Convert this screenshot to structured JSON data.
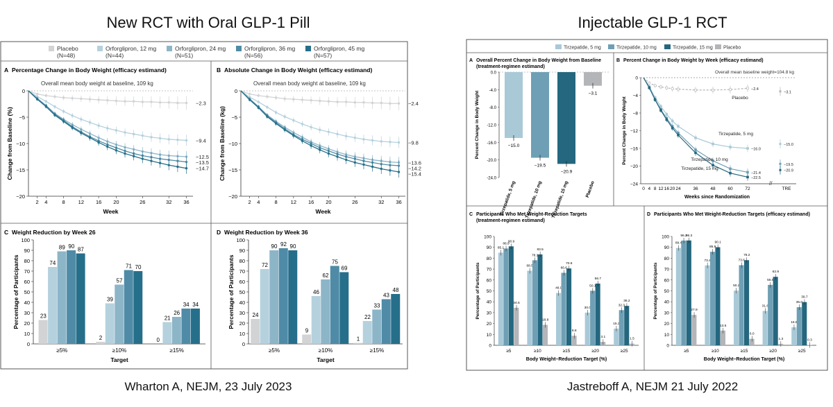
{
  "headings": {
    "left_title": "New RCT with Oral GLP-1 Pill",
    "right_title": "Injectable GLP-1 RCT",
    "left_citation": "Wharton A, NEJM, 23 July 2023",
    "right_citation": "Jastreboff A, NEJM 21 July 2022"
  },
  "colors": {
    "placebo": "#d2d3d5",
    "orf12": "#b5d1dd",
    "orf24": "#8db5c8",
    "orf36": "#4f8ba6",
    "orf45": "#266f8a",
    "tz5": "#a9c9d7",
    "tz10": "#6f9fb4",
    "tz15": "#24677f",
    "tzplacebo": "#b4b5b8"
  },
  "left_legend": [
    {
      "name": "Placebo",
      "n": "(N=48)",
      "key": "placebo"
    },
    {
      "name": "Orforglipron, 12 mg",
      "n": "(N=44)",
      "key": "orf12"
    },
    {
      "name": "Orforglipron, 24 mg",
      "n": "(N=51)",
      "key": "orf24"
    },
    {
      "name": "Orforglipron, 36 mg",
      "n": "(N=56)",
      "key": "orf36"
    },
    {
      "name": "Orforglipron, 45 mg",
      "n": "(N=57)",
      "key": "orf45"
    }
  ],
  "right_legend": [
    {
      "name": "Tirzepatide, 5 mg",
      "key": "tz5"
    },
    {
      "name": "Tirzepatide, 10 mg",
      "key": "tz10"
    },
    {
      "name": "Tirzepatide, 15 mg",
      "key": "tz15"
    },
    {
      "name": "Placebo",
      "key": "tzplacebo"
    }
  ],
  "chart_data": [
    {
      "id": "lineA",
      "type": "line",
      "panel_letter": "A",
      "title": "Percentage Change in Body Weight (efficacy estimand)",
      "note": "Overall mean body weight at baseline, 109 kg",
      "xlabel": "Week",
      "ylabel": "Change from Baseline (%)",
      "x_ticks": [
        2,
        4,
        8,
        12,
        16,
        20,
        26,
        32,
        36
      ],
      "y_ticks": [
        0,
        -5,
        -10,
        -15,
        -20
      ],
      "ylim": [
        -20,
        0
      ],
      "xlim": [
        0,
        37.5
      ],
      "x": [
        0,
        2,
        4,
        6,
        8,
        10,
        12,
        14,
        16,
        18,
        20,
        22,
        24,
        26,
        28,
        30,
        32,
        34,
        36
      ],
      "series": [
        {
          "key": "placebo",
          "end_label": "−2.3",
          "values": [
            0,
            -0.6,
            -0.9,
            -1.1,
            -1.3,
            -1.4,
            -1.5,
            -1.6,
            -1.7,
            -1.8,
            -1.9,
            -2.0,
            -2.0,
            -2.1,
            -2.1,
            -2.2,
            -2.2,
            -2.3,
            -2.3
          ]
        },
        {
          "key": "orf12",
          "end_label": "−9.4",
          "values": [
            0,
            -1.1,
            -2.0,
            -3.0,
            -3.9,
            -4.7,
            -5.4,
            -6.0,
            -6.6,
            -7.1,
            -7.5,
            -7.9,
            -8.2,
            -8.5,
            -8.8,
            -9.0,
            -9.2,
            -9.3,
            -9.4
          ]
        },
        {
          "key": "orf24",
          "end_label": "−12.5",
          "values": [
            0,
            -1.4,
            -2.8,
            -4.3,
            -5.4,
            -6.4,
            -7.3,
            -8.1,
            -8.9,
            -9.6,
            -10.2,
            -10.7,
            -11.1,
            -11.5,
            -11.8,
            -12.1,
            -12.3,
            -12.4,
            -12.5
          ]
        },
        {
          "key": "orf36",
          "end_label": "−13.5",
          "values": [
            0,
            -1.5,
            -2.8,
            -4.4,
            -5.6,
            -6.8,
            -7.8,
            -8.7,
            -9.5,
            -10.2,
            -10.8,
            -11.4,
            -11.9,
            -12.3,
            -12.6,
            -12.9,
            -13.1,
            -13.3,
            -13.5
          ]
        },
        {
          "key": "orf45",
          "end_label": "−14.7",
          "values": [
            0,
            -1.6,
            -3.0,
            -4.6,
            -5.8,
            -7.0,
            -8.0,
            -8.9,
            -9.8,
            -10.6,
            -11.3,
            -11.9,
            -12.4,
            -12.9,
            -13.3,
            -13.7,
            -14.1,
            -14.4,
            -14.7
          ]
        }
      ]
    },
    {
      "id": "lineB",
      "type": "line",
      "panel_letter": "B",
      "title": "Absolute Change in Body Weight (efficacy estimand)",
      "note": "Overall mean body weight at baseline, 109 kg",
      "xlabel": "Week",
      "ylabel": "Change from Baseline (kg)",
      "x_ticks": [
        2,
        4,
        8,
        12,
        16,
        20,
        26,
        32,
        36
      ],
      "y_ticks": [
        0,
        -5,
        -10,
        -15,
        -20
      ],
      "ylim": [
        -20,
        0
      ],
      "xlim": [
        0,
        37.5
      ],
      "x": [
        0,
        2,
        4,
        6,
        8,
        10,
        12,
        14,
        16,
        18,
        20,
        22,
        24,
        26,
        28,
        30,
        32,
        34,
        36
      ],
      "series": [
        {
          "key": "placebo",
          "end_label": "−2.4",
          "values": [
            0,
            -0.6,
            -0.9,
            -1.1,
            -1.3,
            -1.5,
            -1.6,
            -1.7,
            -1.8,
            -1.9,
            -2.0,
            -2.1,
            -2.1,
            -2.2,
            -2.2,
            -2.3,
            -2.3,
            -2.4,
            -2.4
          ]
        },
        {
          "key": "orf12",
          "end_label": "−9.8",
          "values": [
            0,
            -1.2,
            -2.1,
            -3.1,
            -4.1,
            -4.9,
            -5.6,
            -6.3,
            -6.9,
            -7.4,
            -7.8,
            -8.2,
            -8.6,
            -8.9,
            -9.2,
            -9.4,
            -9.6,
            -9.7,
            -9.8
          ]
        },
        {
          "key": "orf24",
          "end_label": "−13.6",
          "values": [
            0,
            -1.5,
            -3.0,
            -4.6,
            -5.8,
            -6.9,
            -7.9,
            -8.8,
            -9.7,
            -10.4,
            -11.0,
            -11.6,
            -12.1,
            -12.5,
            -12.8,
            -13.1,
            -13.3,
            -13.5,
            -13.6
          ]
        },
        {
          "key": "orf36",
          "end_label": "−14.2",
          "values": [
            0,
            -1.6,
            -3.0,
            -4.7,
            -6.0,
            -7.2,
            -8.3,
            -9.2,
            -10.0,
            -10.8,
            -11.4,
            -12.0,
            -12.5,
            -12.9,
            -13.3,
            -13.6,
            -13.9,
            -14.1,
            -14.2
          ]
        },
        {
          "key": "orf45",
          "end_label": "−15.4",
          "values": [
            0,
            -1.7,
            -3.2,
            -4.9,
            -6.2,
            -7.4,
            -8.5,
            -9.5,
            -10.4,
            -11.2,
            -11.9,
            -12.5,
            -13.1,
            -13.6,
            -14.0,
            -14.4,
            -14.8,
            -15.1,
            -15.4
          ]
        }
      ]
    },
    {
      "id": "barC",
      "type": "bar",
      "panel_letter": "C",
      "title": "Weight Reduction by Week 26",
      "xlabel": "Target",
      "ylabel": "Percentage of Participants",
      "categories": [
        "≥5%",
        "≥10%",
        "≥15%"
      ],
      "y_ticks": [
        0,
        10,
        20,
        30,
        40,
        50,
        60,
        70,
        80,
        90,
        100
      ],
      "ylim": [
        0,
        100
      ],
      "series": [
        {
          "key": "placebo",
          "values": [
            23,
            2,
            0
          ]
        },
        {
          "key": "orf12",
          "values": [
            74,
            39,
            21
          ]
        },
        {
          "key": "orf24",
          "values": [
            89,
            57,
            26
          ]
        },
        {
          "key": "orf36",
          "values": [
            90,
            71,
            34
          ]
        },
        {
          "key": "orf45",
          "values": [
            87,
            70,
            34
          ]
        }
      ]
    },
    {
      "id": "barD",
      "type": "bar",
      "panel_letter": "D",
      "title": "Weight Reduction by Week 36",
      "xlabel": "Target",
      "ylabel": "Percentage of Participants",
      "categories": [
        "≥5%",
        "≥10%",
        "≥15%"
      ],
      "y_ticks": [
        0,
        10,
        20,
        30,
        40,
        50,
        60,
        70,
        80,
        90,
        100
      ],
      "ylim": [
        0,
        100
      ],
      "series": [
        {
          "key": "placebo",
          "values": [
            24,
            9,
            1
          ]
        },
        {
          "key": "orf12",
          "values": [
            72,
            46,
            22
          ]
        },
        {
          "key": "orf24",
          "values": [
            90,
            62,
            33
          ]
        },
        {
          "key": "orf36",
          "values": [
            92,
            75,
            43
          ]
        },
        {
          "key": "orf45",
          "values": [
            90,
            69,
            48
          ]
        }
      ]
    },
    {
      "id": "rA",
      "type": "bar",
      "panel_letter": "A",
      "title": "Overall Percent Change in Body Weight from Baseline",
      "subtitle": "(treatment-regimen estimand)",
      "ylabel": "Percent Change in Body Weight",
      "categories": [
        "Tirzepatide, 5 mg",
        "Tirzepatide, 10 mg",
        "Tirzepatide, 15 mg",
        "Placebo"
      ],
      "keys": [
        "tz5",
        "tz10",
        "tz15",
        "tzplacebo"
      ],
      "values": [
        -15.0,
        -19.5,
        -20.9,
        -3.1
      ],
      "value_labels": [
        "−15.0",
        "−19.5",
        "−20.9",
        "−3.1"
      ],
      "y_ticks": [
        "0.0",
        "-4.0",
        "-8.0",
        "-12.0",
        "-16.0",
        "-20.0",
        "-24.0"
      ],
      "ylim": [
        -24,
        0
      ]
    },
    {
      "id": "rB",
      "type": "line",
      "panel_letter": "B",
      "title": "Percent Change in Body Weight by Week (efficacy estimand)",
      "note": "Overall mean baseline weight=104.8 kg",
      "xlabel": "Weeks since Randomization",
      "ylabel": "Percent Change in Body Weight",
      "x_ticks": [
        "0",
        "4",
        "8",
        "12",
        "16",
        "20",
        "24",
        "36",
        "48",
        "60",
        "72",
        "TRE"
      ],
      "y_ticks": [
        0,
        -4,
        -8,
        -12,
        -16,
        -20,
        -24
      ],
      "ylim": [
        -24,
        0
      ],
      "x": [
        0,
        4,
        8,
        12,
        16,
        20,
        24,
        36,
        48,
        60,
        72
      ],
      "series": [
        {
          "key": "tzplacebo",
          "label": "Placebo",
          "end_label": "−2.4",
          "tre": -3.1,
          "tre_label": "−3.1",
          "values": [
            0,
            -1.2,
            -1.8,
            -2.1,
            -2.3,
            -2.5,
            -2.6,
            -2.8,
            -2.8,
            -2.7,
            -2.4
          ]
        },
        {
          "key": "tz5",
          "label": "Tirzepatide, 5 mg",
          "end_label": "−16.0",
          "tre": -15.0,
          "tre_label": "−15.0",
          "values": [
            0,
            -2.0,
            -4.5,
            -6.5,
            -8.3,
            -9.8,
            -11.0,
            -13.6,
            -15.0,
            -15.7,
            -16.0
          ]
        },
        {
          "key": "tz10",
          "label": "Tirzepatide, 10 mg",
          "end_label": "−21.4",
          "tre": -19.5,
          "tre_label": "−19.5",
          "values": [
            0,
            -2.2,
            -4.9,
            -7.2,
            -9.2,
            -11.0,
            -12.5,
            -16.3,
            -18.8,
            -20.6,
            -21.4
          ]
        },
        {
          "key": "tz15",
          "label": "Tirzepatide, 15 mg",
          "end_label": "−22.5",
          "tre": -20.9,
          "tre_label": "−20.9",
          "values": [
            0,
            -2.3,
            -5.0,
            -7.4,
            -9.5,
            -11.4,
            -13.0,
            -17.0,
            -19.8,
            -21.6,
            -22.5
          ]
        }
      ]
    },
    {
      "id": "rC",
      "type": "bar",
      "panel_letter": "C",
      "title": "Participants Who Met Weight-Reduction Targets",
      "subtitle": "(treatment-regimen estimand)",
      "xlabel": "Body Weight–Reduction Target (%)",
      "ylabel": "Percentage of Participants",
      "categories": [
        "≥5",
        "≥10",
        "≥15",
        "≥20",
        "≥25"
      ],
      "y_ticks": [
        0,
        10,
        20,
        30,
        40,
        50,
        60,
        70,
        80,
        90,
        100
      ],
      "ylim": [
        0,
        100
      ],
      "series": [
        {
          "key": "tz5",
          "values": [
            85.1,
            68.5,
            48.0,
            30.0,
            15.3
          ]
        },
        {
          "key": "tz10",
          "values": [
            88.9,
            78.1,
            66.6,
            50.1,
            32.3
          ]
        },
        {
          "key": "tz15",
          "values": [
            90.9,
            83.5,
            70.6,
            56.7,
            36.2
          ]
        },
        {
          "key": "tzplacebo",
          "values": [
            34.5,
            18.8,
            8.8,
            3.1,
            1.5
          ]
        }
      ]
    },
    {
      "id": "rD",
      "type": "bar",
      "panel_letter": "D",
      "title": "Participants Who Met Weight-Reduction Targets (efficacy estimand)",
      "xlabel": "Body Weight–Reduction Target (%)",
      "ylabel": "Percentage of Participants",
      "categories": [
        "≥5",
        "≥10",
        "≥15",
        "≥20",
        "≥25"
      ],
      "y_ticks": [
        0,
        10,
        20,
        30,
        40,
        50,
        60,
        70,
        80,
        90,
        100
      ],
      "ylim": [
        0,
        100
      ],
      "series": [
        {
          "key": "tz5",
          "values": [
            89.4,
            73.4,
            50.2,
            31.6,
            16.5
          ]
        },
        {
          "key": "tz10",
          "values": [
            96.2,
            85.9,
            73.6,
            55.5,
            35.0
          ]
        },
        {
          "key": "tz15",
          "values": [
            96.3,
            90.1,
            78.2,
            62.9,
            39.7
          ]
        },
        {
          "key": "tzplacebo",
          "values": [
            27.9,
            13.5,
            6.0,
            1.3,
            0.3
          ]
        }
      ]
    }
  ]
}
